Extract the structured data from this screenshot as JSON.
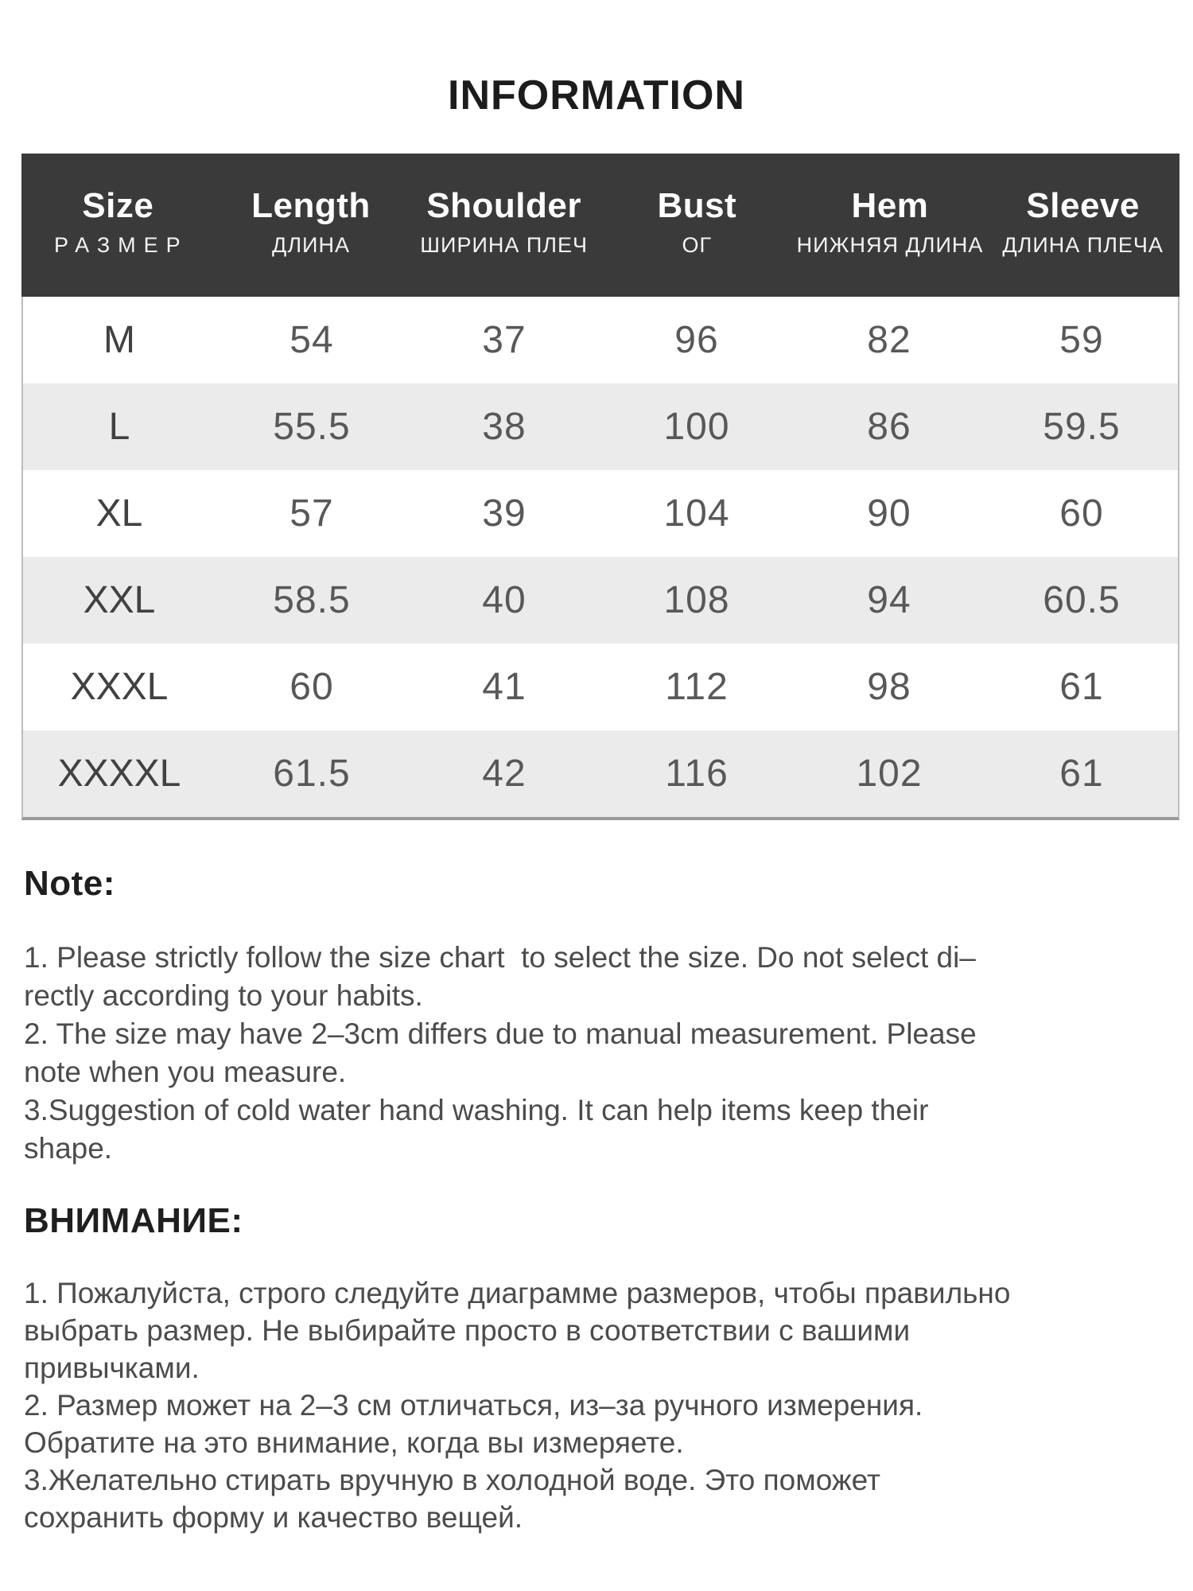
{
  "title": "INFORMATION",
  "table": {
    "columns": [
      {
        "en": "Size",
        "ru": "РАЗМЕР"
      },
      {
        "en": "Length",
        "ru": "ДЛИНА"
      },
      {
        "en": "Shoulder",
        "ru": "ШИРИНА ПЛЕЧ"
      },
      {
        "en": "Bust",
        "ru": "ОГ"
      },
      {
        "en": "Hem",
        "ru": "НИЖНЯЯ ДЛИНА"
      },
      {
        "en": "Sleeve",
        "ru": "ДЛИНА ПЛЕЧА"
      }
    ],
    "rows": [
      {
        "size": "M",
        "values": [
          "54",
          "37",
          "96",
          "82",
          "59"
        ]
      },
      {
        "size": "L",
        "values": [
          "55.5",
          "38",
          "100",
          "86",
          "59.5"
        ]
      },
      {
        "size": "XL",
        "values": [
          "57",
          "39",
          "104",
          "90",
          "60"
        ]
      },
      {
        "size": "XXL",
        "values": [
          "58.5",
          "40",
          "108",
          "94",
          "60.5"
        ]
      },
      {
        "size": "XXXL",
        "values": [
          "60",
          "41",
          "112",
          "98",
          "61"
        ]
      },
      {
        "size": "XXXXL",
        "values": [
          "61.5",
          "42",
          "116",
          "102",
          "61"
        ]
      }
    ]
  },
  "note": {
    "heading": "Note:",
    "lines": [
      "1. Please strictly follow the size chart  to select the size. Do not select di–",
      "rectly according to your habits.",
      "2. The size may have 2–3cm differs due to manual measurement. Please",
      "note when you measure.",
      "3.Suggestion of cold water hand washing. It can help items keep their",
      "shape."
    ]
  },
  "attention": {
    "heading": "ВНИМАНИЕ:",
    "lines": [
      "1. Пожалуйста, строго следуйте диаграмме размеров, чтобы правильно",
      "выбрать размер. Не выбирайте просто в соответствии с вашими",
      "привычками.",
      "2. Размер может на 2–3 см отличаться, из–за ручного измерения.",
      "Обратите на это внимание, когда вы измеряете.",
      "3.Желательно стирать вручную в холодной воде. Это поможет",
      "сохранить форму и качество вещей."
    ]
  },
  "colors": {
    "header_bg": "#3a3a3a",
    "header_text": "#ffffff",
    "row_stripe": "#ebebeb",
    "row_plain": "#ffffff",
    "size_text": "#414141",
    "value_text": "#585858",
    "body_text": "#4c4c4c",
    "heading_text": "#1f1f1f",
    "table_side_border": "#bdbdbd",
    "table_bottom_border": "#9a9a9a"
  }
}
